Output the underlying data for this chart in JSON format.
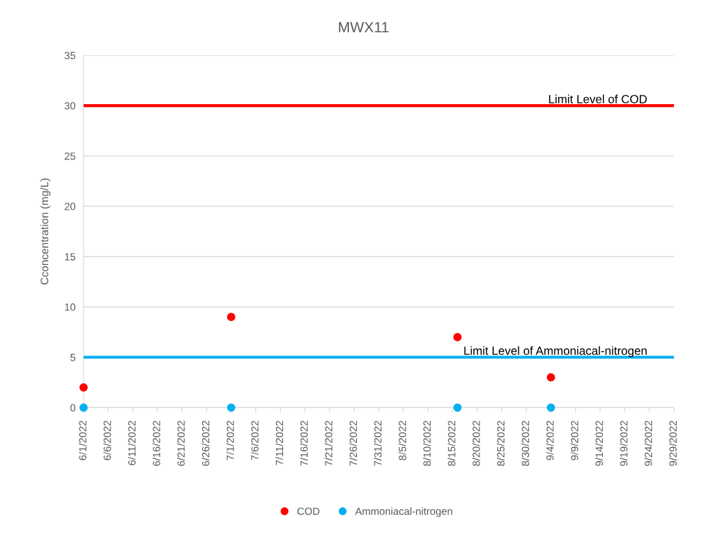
{
  "chart_data": {
    "type": "scatter",
    "title": "MWX11",
    "ylabel": "Cconcentration (mg/L)",
    "x": [
      "2022-06-01",
      "2022-07-01",
      "2022-08-16",
      "2022-09-04"
    ],
    "series": [
      {
        "name": "COD",
        "color": "#ff0000",
        "values": [
          2,
          9,
          7,
          3
        ]
      },
      {
        "name": "Ammoniacal-nitrogen",
        "color": "#00b0f0",
        "values": [
          0,
          0,
          0,
          0
        ]
      }
    ],
    "ref_lines": [
      {
        "axis": "y",
        "value": 30,
        "label": "Limit Level of COD",
        "color": "#ff0000",
        "line_style": "solid"
      },
      {
        "axis": "y",
        "value": 5,
        "label": "Limit Level of Ammoniacal-nitrogen",
        "color": "#00b0f0",
        "line_style": "solid"
      }
    ],
    "xlim": [
      "2022-06-01",
      "2022-09-29"
    ],
    "xticks": [
      {
        "value": "2022-06-01",
        "label": "6/1/2022"
      },
      {
        "value": "2022-06-06",
        "label": "6/6/2022"
      },
      {
        "value": "2022-06-11",
        "label": "6/11/2022"
      },
      {
        "value": "2022-06-16",
        "label": "6/16/2022"
      },
      {
        "value": "2022-06-21",
        "label": "6/21/2022"
      },
      {
        "value": "2022-06-26",
        "label": "6/26/2022"
      },
      {
        "value": "2022-07-01",
        "label": "7/1/2022"
      },
      {
        "value": "2022-07-06",
        "label": "7/6/2022"
      },
      {
        "value": "2022-07-11",
        "label": "7/11/2022"
      },
      {
        "value": "2022-07-16",
        "label": "7/16/2022"
      },
      {
        "value": "2022-07-21",
        "label": "7/21/2022"
      },
      {
        "value": "2022-07-26",
        "label": "7/26/2022"
      },
      {
        "value": "2022-07-31",
        "label": "7/31/2022"
      },
      {
        "value": "2022-08-05",
        "label": "8/5/2022"
      },
      {
        "value": "2022-08-10",
        "label": "8/10/2022"
      },
      {
        "value": "2022-08-15",
        "label": "8/15/2022"
      },
      {
        "value": "2022-08-20",
        "label": "8/20/2022"
      },
      {
        "value": "2022-08-25",
        "label": "8/25/2022"
      },
      {
        "value": "2022-08-30",
        "label": "8/30/2022"
      },
      {
        "value": "2022-09-04",
        "label": "9/4/2022"
      },
      {
        "value": "2022-09-09",
        "label": "9/9/2022"
      },
      {
        "value": "2022-09-14",
        "label": "9/14/2022"
      },
      {
        "value": "2022-09-19",
        "label": "9/19/2022"
      },
      {
        "value": "2022-09-24",
        "label": "9/24/2022"
      },
      {
        "value": "2022-09-29",
        "label": "9/29/2022"
      }
    ],
    "ylim": [
      0,
      35
    ],
    "yticks": [
      0,
      5,
      10,
      15,
      20,
      25,
      30,
      35
    ],
    "grid": "y",
    "legend": "bottom",
    "marker": "circle"
  }
}
